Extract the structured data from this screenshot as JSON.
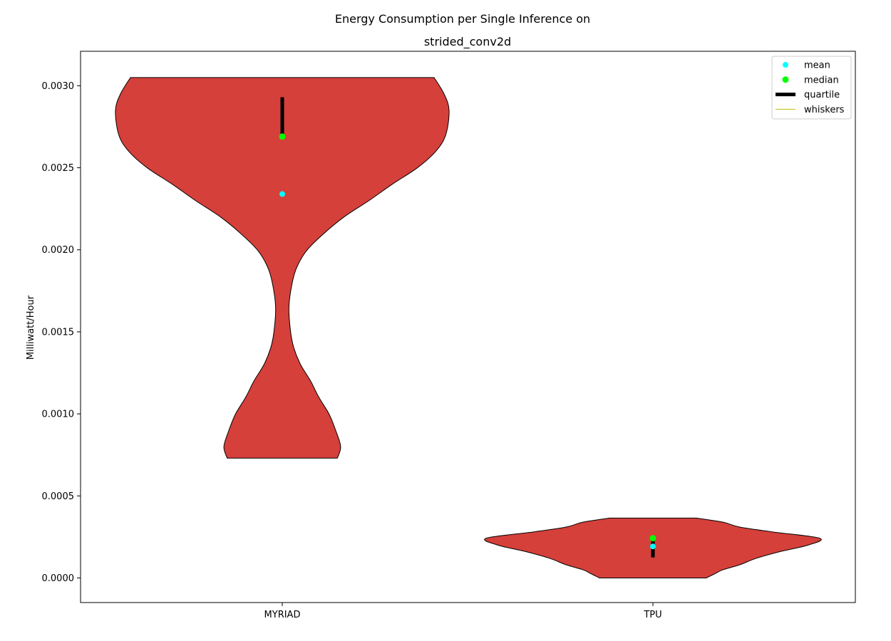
{
  "chart_data": {
    "type": "violin",
    "title_line1": "Energy Consumption per Single Inference on",
    "title_line2": "strided_conv2d",
    "xlabel": "",
    "ylabel": "Milliwatt/Hour",
    "categories": [
      "MYRIAD",
      "TPU"
    ],
    "ylim": [
      -0.00015,
      0.00321
    ],
    "yticks": [
      0.0,
      0.0005,
      0.001,
      0.0015,
      0.002,
      0.0025,
      0.003
    ],
    "ytick_labels": [
      "0.0000",
      "0.0005",
      "0.0010",
      "0.0015",
      "0.0020",
      "0.0025",
      "0.0030"
    ],
    "grid": false,
    "legend": {
      "position": "top-right",
      "items": [
        {
          "label": "mean",
          "kind": "marker",
          "color": "#00ffff"
        },
        {
          "label": "median",
          "kind": "marker",
          "color": "#00ff00"
        },
        {
          "label": "quartile",
          "kind": "thickline",
          "color": "#000000"
        },
        {
          "label": "whiskers",
          "kind": "line",
          "color": "#bfbf00"
        }
      ]
    },
    "colors": {
      "violin_fill": "#d5403a",
      "violin_edge": "#000000",
      "mean": "#00ffff",
      "median": "#00ff00",
      "quartile": "#000000"
    },
    "series": [
      {
        "category": "MYRIAD",
        "min": 0.00073,
        "max": 0.00305,
        "mean": 0.00234,
        "median": 0.00269,
        "q1": 0.00269,
        "q3": 0.00293,
        "density": [
          [
            0.00073,
            0.33
          ],
          [
            0.0008,
            0.35
          ],
          [
            0.0009,
            0.32
          ],
          [
            0.001,
            0.28
          ],
          [
            0.0011,
            0.22
          ],
          [
            0.0012,
            0.17
          ],
          [
            0.0013,
            0.11
          ],
          [
            0.0014,
            0.07
          ],
          [
            0.0015,
            0.05
          ],
          [
            0.00165,
            0.04
          ],
          [
            0.0018,
            0.06
          ],
          [
            0.0019,
            0.09
          ],
          [
            0.002,
            0.15
          ],
          [
            0.0021,
            0.25
          ],
          [
            0.0022,
            0.37
          ],
          [
            0.0023,
            0.52
          ],
          [
            0.0024,
            0.66
          ],
          [
            0.0025,
            0.81
          ],
          [
            0.0026,
            0.92
          ],
          [
            0.0027,
            0.98
          ],
          [
            0.00285,
            1.0
          ],
          [
            0.00295,
            0.97
          ],
          [
            0.00305,
            0.91
          ]
        ]
      },
      {
        "category": "TPU",
        "min": 0.0,
        "max": 0.000365,
        "mean": 0.000192,
        "median": 0.000242,
        "q1": 0.000125,
        "q3": 0.000242,
        "density": [
          [
            0.0,
            0.32
          ],
          [
            1.5e-05,
            0.35
          ],
          [
            3e-05,
            0.38
          ],
          [
            5e-05,
            0.42
          ],
          [
            8e-05,
            0.52
          ],
          [
            0.00012,
            0.62
          ],
          [
            0.00016,
            0.76
          ],
          [
            0.0002,
            0.93
          ],
          [
            0.000242,
            1.0
          ],
          [
            0.00028,
            0.72
          ],
          [
            0.00031,
            0.52
          ],
          [
            0.00034,
            0.42
          ],
          [
            0.000365,
            0.26
          ]
        ]
      }
    ]
  }
}
